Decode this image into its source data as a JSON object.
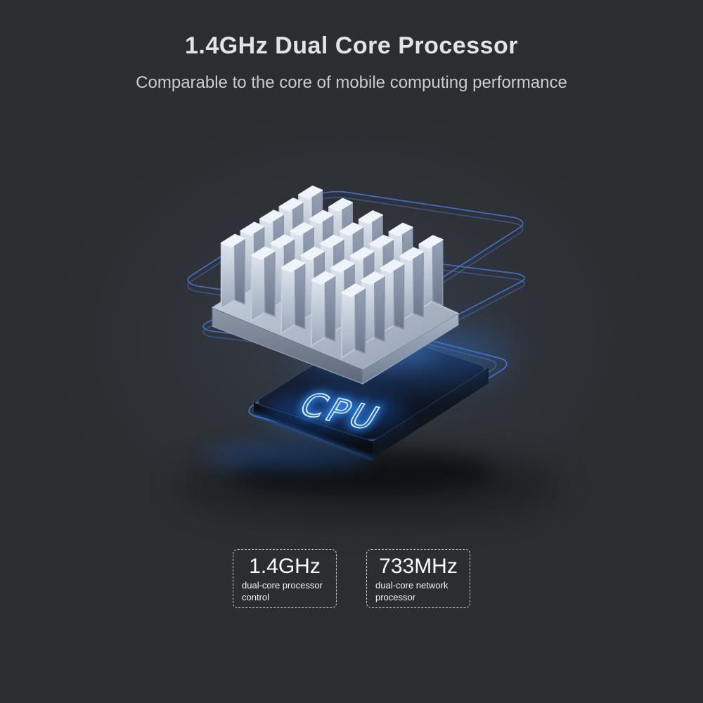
{
  "page": {
    "background_color": "#2b2d30",
    "accent_blue": "#4678d8",
    "neon_blue": "#35a7ff"
  },
  "header": {
    "title": "1.4GHz Dual Core Processor",
    "subtitle": "Comparable to the core of mobile computing performance"
  },
  "illustration": {
    "name": "heatsink-floating-over-cpu-chip",
    "chip_label": "CPU"
  },
  "specs": [
    {
      "value": "1.4GHz",
      "line1": "dual-core processor",
      "line2": "control"
    },
    {
      "value": "733MHz",
      "line1": "dual-core network",
      "line2": "processor"
    }
  ]
}
